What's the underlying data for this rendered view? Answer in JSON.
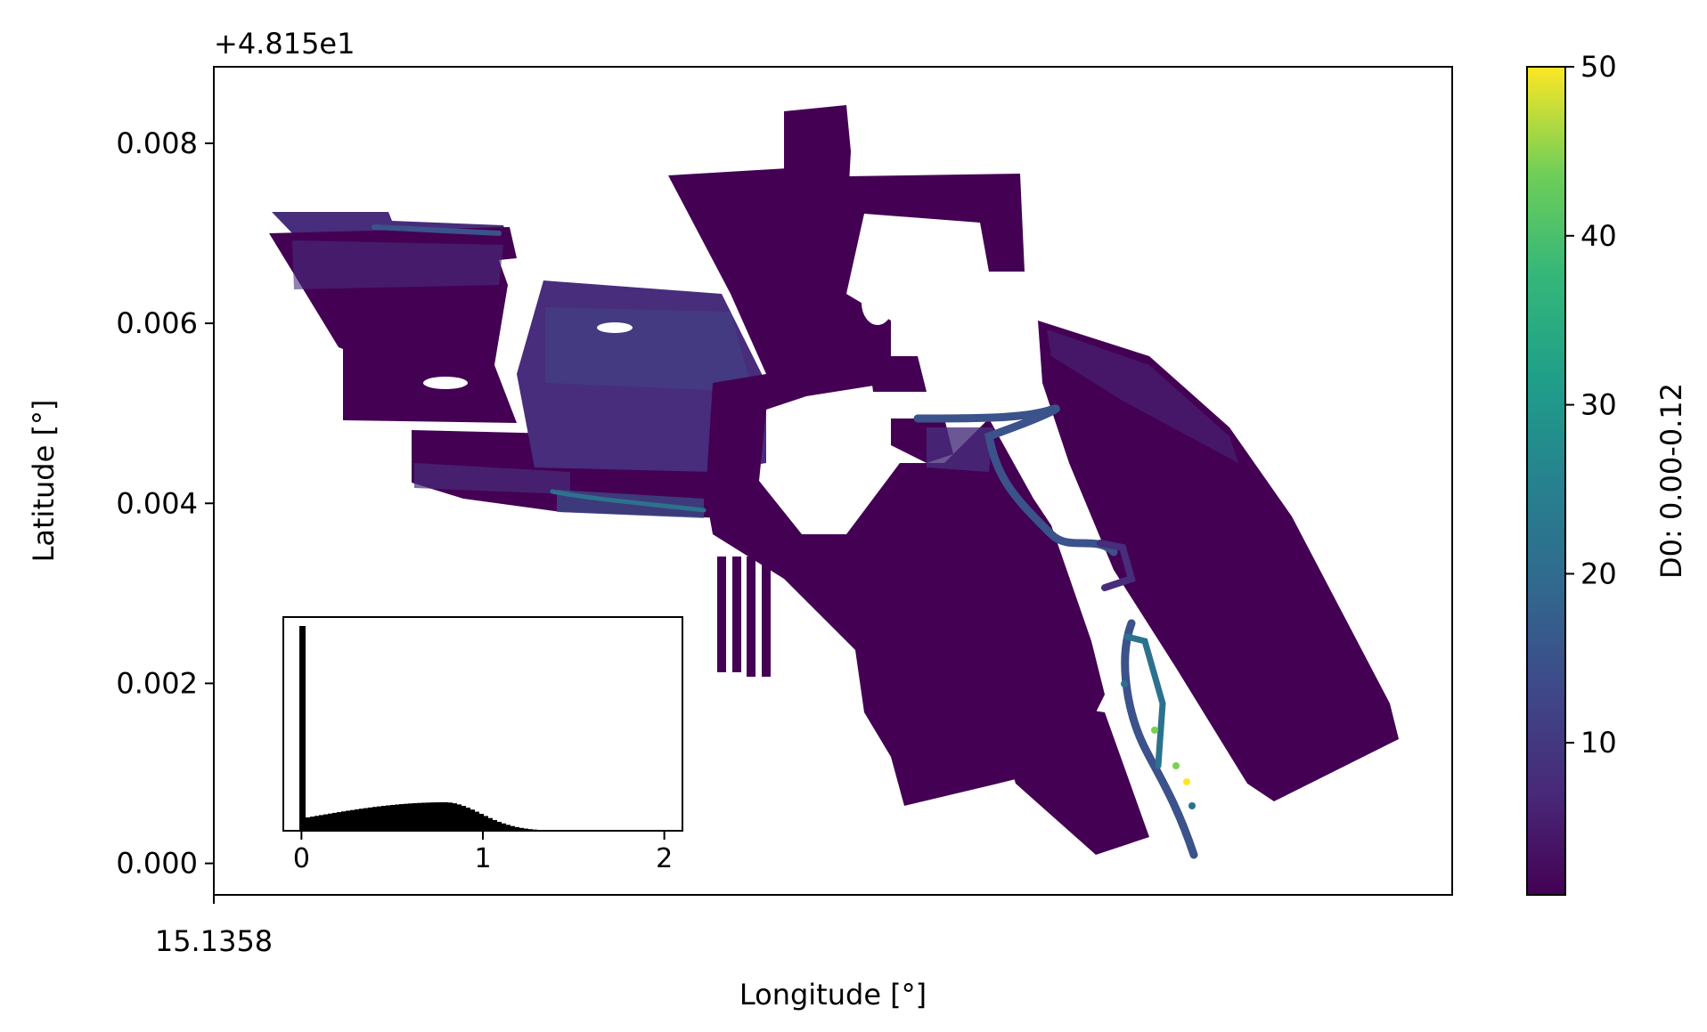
{
  "chart_data": {
    "type": "scatter",
    "xlabel": "Longitude [°]",
    "ylabel": "Latitude [°]",
    "y_offset_label": "+4.815e1",
    "y_offset": 48.15,
    "ylim": [
      -0.00035,
      0.00885
    ],
    "yticks": [
      0.0,
      0.002,
      0.004,
      0.006,
      0.008
    ],
    "ytick_labels": [
      "0.000",
      "0.002",
      "0.004",
      "0.006",
      "0.008"
    ],
    "xtick_labels": [
      "15.1358"
    ],
    "grid": false,
    "colorbar": {
      "label": "D0: 0.00-0.12",
      "colormap": "viridis",
      "range": [
        1,
        50
      ],
      "ticks": [
        10,
        20,
        30,
        40,
        50
      ],
      "tick_labels": [
        "10",
        "20",
        "30",
        "40",
        "50"
      ]
    },
    "inset_histogram": {
      "xlim": [
        -0.1,
        2.1
      ],
      "xticks": [
        0,
        1,
        2
      ],
      "xtick_labels": [
        "0",
        "1",
        "2"
      ],
      "bar_color": "#000000"
    },
    "colors": {
      "dark_purple": "#440154",
      "mid_purple": "#472d7b",
      "blue_purple": "#3b528b",
      "teal": "#2c728e",
      "green": "#7ad151",
      "yellow": "#fde725"
    }
  }
}
